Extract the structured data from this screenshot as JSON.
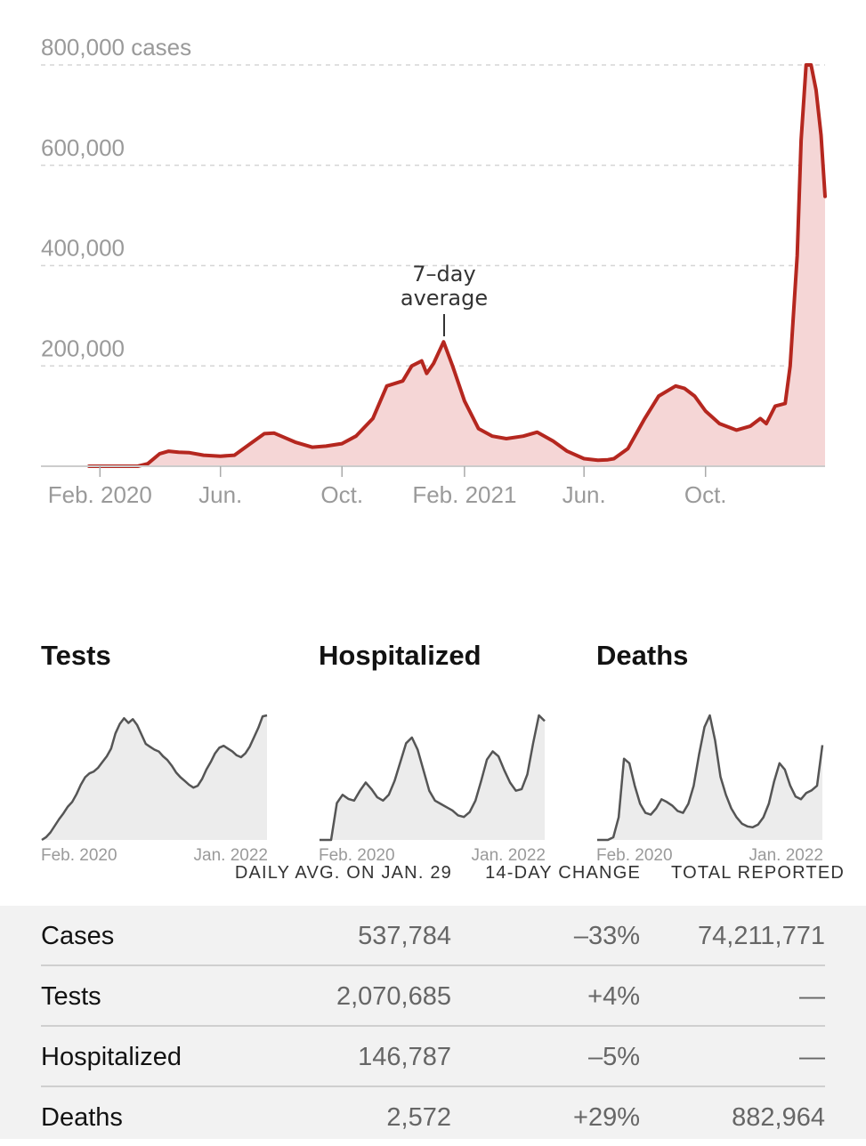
{
  "chart_data": [
    {
      "type": "area",
      "title": "",
      "y_tick_labels": [
        "800,000 cases",
        "600,000",
        "400,000",
        "200,000"
      ],
      "y_ticks": [
        800000,
        600000,
        400000,
        200000
      ],
      "ylim": [
        0,
        800000
      ],
      "x_tick_labels": [
        "Feb. 2020",
        "Jun.",
        "Oct.",
        "Feb. 2021",
        "Jun.",
        "Oct."
      ],
      "x_ticks": [
        "2020-02",
        "2020-06",
        "2020-10",
        "2021-02",
        "2021-06",
        "2021-10"
      ],
      "annotation": {
        "line1": "7–day",
        "line2": "average",
        "x": "2021-01-11"
      },
      "grid": true,
      "colors": {
        "line": "#b5271f",
        "fill": "#f5d6d6"
      },
      "series": [
        {
          "x": [
            "2020-01-21",
            "2020-02-01",
            "2020-03-01",
            "2020-03-10",
            "2020-03-20",
            "2020-04-01",
            "2020-04-10",
            "2020-04-20",
            "2020-05-01",
            "2020-05-15",
            "2020-06-01",
            "2020-06-15",
            "2020-07-01",
            "2020-07-15",
            "2020-07-25",
            "2020-08-01",
            "2020-08-15",
            "2020-09-01",
            "2020-09-15",
            "2020-10-01",
            "2020-10-15",
            "2020-11-01",
            "2020-11-15",
            "2020-12-01",
            "2020-12-10",
            "2020-12-20",
            "2020-12-25",
            "2021-01-01",
            "2021-01-11",
            "2021-01-20",
            "2021-02-01",
            "2021-02-15",
            "2021-03-01",
            "2021-03-15",
            "2021-04-01",
            "2021-04-15",
            "2021-05-01",
            "2021-05-15",
            "2021-06-01",
            "2021-06-15",
            "2021-06-25",
            "2021-07-01",
            "2021-07-15",
            "2021-08-01",
            "2021-08-15",
            "2021-09-01",
            "2021-09-10",
            "2021-09-20",
            "2021-10-01",
            "2021-10-15",
            "2021-11-01",
            "2021-11-15",
            "2021-11-25",
            "2021-12-01",
            "2021-12-10",
            "2021-12-20",
            "2021-12-25",
            "2022-01-01",
            "2022-01-05",
            "2022-01-10",
            "2022-01-15",
            "2022-01-20",
            "2022-01-25",
            "2022-01-29"
          ],
          "values": [
            0,
            0,
            0,
            0,
            5000,
            25000,
            30000,
            28000,
            27000,
            22000,
            20000,
            22000,
            45000,
            65000,
            66000,
            60000,
            48000,
            38000,
            40000,
            45000,
            60000,
            95000,
            160000,
            170000,
            200000,
            210000,
            185000,
            205000,
            248000,
            200000,
            130000,
            75000,
            60000,
            55000,
            60000,
            68000,
            50000,
            30000,
            15000,
            12000,
            13000,
            15000,
            35000,
            95000,
            140000,
            160000,
            155000,
            140000,
            110000,
            85000,
            72000,
            80000,
            95000,
            85000,
            120000,
            125000,
            200000,
            420000,
            650000,
            800000,
            800000,
            750000,
            660000,
            537784
          ]
        }
      ]
    },
    {
      "type": "area",
      "title": "Tests",
      "x_tick_labels": [
        "Feb. 2020",
        "Jan. 2022"
      ],
      "series": [
        {
          "values": [
            0,
            3,
            8,
            15,
            22,
            28,
            35,
            40,
            48,
            58,
            66,
            70,
            72,
            76,
            82,
            88,
            96,
            112,
            122,
            128,
            123,
            127,
            121,
            111,
            101,
            98,
            95,
            93,
            88,
            84,
            78,
            71,
            66,
            62,
            58,
            55,
            57,
            64,
            74,
            82,
            91,
            97,
            99,
            96,
            93,
            89,
            87,
            91,
            98,
            108,
            118,
            130,
            131
          ]
        }
      ]
    },
    {
      "type": "area",
      "title": "Hospitalized",
      "x_tick_labels": [
        "Feb. 2020",
        "Jan. 2022"
      ],
      "series": [
        {
          "values": [
            0,
            0,
            0,
            45,
            55,
            50,
            48,
            60,
            70,
            62,
            52,
            48,
            55,
            72,
            95,
            118,
            125,
            110,
            85,
            60,
            48,
            44,
            40,
            36,
            30,
            28,
            34,
            48,
            72,
            98,
            108,
            102,
            85,
            70,
            60,
            62,
            80,
            118,
            152,
            145
          ]
        }
      ]
    },
    {
      "type": "area",
      "title": "Deaths",
      "x_tick_labels": [
        "Feb. 2020",
        "Jan. 2022"
      ],
      "series": [
        {
          "values": [
            0,
            0,
            0,
            3,
            25,
            90,
            85,
            60,
            40,
            30,
            28,
            35,
            45,
            42,
            38,
            32,
            30,
            40,
            60,
            95,
            125,
            138,
            110,
            70,
            50,
            35,
            25,
            18,
            15,
            14,
            17,
            25,
            40,
            65,
            85,
            78,
            60,
            48,
            45,
            52,
            55,
            60,
            105
          ]
        }
      ]
    }
  ],
  "table": {
    "headers": {
      "daily": "DAILY AVG. ON JAN. 29",
      "change": "14-DAY CHANGE",
      "total": "TOTAL REPORTED"
    },
    "rows": [
      {
        "label": "Cases",
        "daily": "537,784",
        "change": "–33%",
        "total": "74,211,771"
      },
      {
        "label": "Tests",
        "daily": "2,070,685",
        "change": "+4%",
        "total": "—"
      },
      {
        "label": "Hospitalized",
        "daily": "146,787",
        "change": "–5%",
        "total": "—"
      },
      {
        "label": "Deaths",
        "daily": "2,572",
        "change": "+29%",
        "total": "882,964"
      }
    ]
  }
}
